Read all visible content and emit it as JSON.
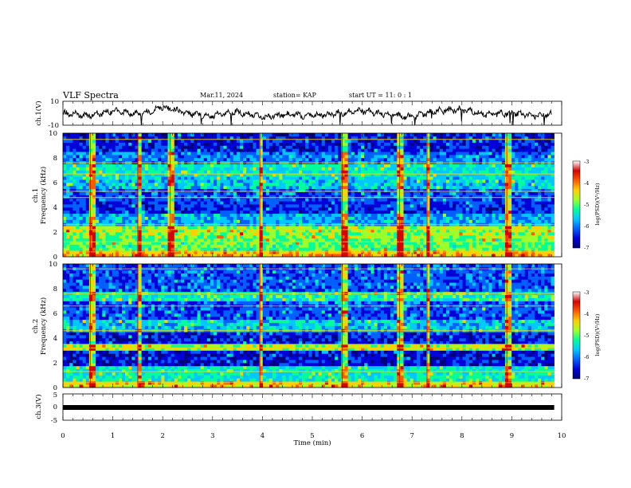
{
  "header": {
    "title": "VLF Spectra",
    "date": "Mar.11, 2024",
    "station": "station= KAP",
    "start_time": "start  UT  =   11: 0  : 1"
  },
  "colors": {
    "waveform": "#000000",
    "colormap": [
      "#00007a",
      "#0000d8",
      "#0060ff",
      "#00c8ff",
      "#00ff9a",
      "#9cff2a",
      "#ffd000",
      "#ff5a00",
      "#d80000",
      "#ffffff"
    ]
  },
  "chart_data": [
    {
      "type": "line",
      "panel": "ch1-waveform",
      "ylabel": "ch.1(V)",
      "ylim": [
        -10,
        10
      ],
      "ytick_labels": [
        "10",
        "-10"
      ],
      "xlim": [
        0,
        10
      ],
      "x": [
        0,
        0.5,
        1.0,
        1.5,
        2.0,
        2.5,
        3.0,
        3.5,
        4.0,
        4.5,
        5.0,
        5.5,
        6.0,
        6.5,
        7.0,
        7.5,
        8.0,
        8.5,
        9.0,
        9.5,
        9.8
      ],
      "y": [
        0,
        -2,
        2,
        -1,
        5,
        0,
        -2,
        1,
        -3,
        -1,
        -2,
        0,
        2,
        -1,
        -3,
        2,
        3,
        -1,
        0,
        -2,
        -1
      ]
    },
    {
      "type": "heatmap",
      "panel": "ch1-spectrogram",
      "ylabel": "Frequency (kHz)",
      "channel_label": "ch.1",
      "ylim": [
        0,
        10
      ],
      "ytick_labels": [
        "0",
        "2",
        "4",
        "6",
        "8",
        "10"
      ],
      "xlim": [
        0,
        9.85
      ],
      "colorbar": {
        "label": "log(PSD)(V²/Hz)",
        "range": [
          -7,
          -3
        ],
        "tick_labels": [
          "-3",
          "-4",
          "-5",
          "-6",
          "-7"
        ]
      },
      "band_levels": [
        {
          "f": [
            0,
            0.6
          ],
          "level": -4.0
        },
        {
          "f": [
            0.6,
            1.6
          ],
          "level": -4.8
        },
        {
          "f": [
            1.6,
            2.6
          ],
          "level": -4.6
        },
        {
          "f": [
            2.6,
            3.6
          ],
          "level": -5.6
        },
        {
          "f": [
            3.6,
            4.6
          ],
          "level": -6.2
        },
        {
          "f": [
            4.6,
            5.6
          ],
          "level": -6.0
        },
        {
          "f": [
            5.6,
            6.6
          ],
          "level": -5.4
        },
        {
          "f": [
            6.6,
            7.4
          ],
          "level": -5.2
        },
        {
          "f": [
            7.4,
            8.6
          ],
          "level": -5.8
        },
        {
          "f": [
            8.6,
            10
          ],
          "level": -6.3
        }
      ],
      "tone_lines_khz": [
        0.4,
        1.2,
        2.2,
        2.6,
        4.8,
        5.3,
        6.7,
        7.6,
        9.5
      ],
      "impulse_times_min": [
        0.55,
        1.5,
        2.15,
        3.95,
        5.6,
        6.75,
        7.3,
        8.9
      ]
    },
    {
      "type": "heatmap",
      "panel": "ch2-spectrogram",
      "ylabel": "Frequency (kHz)",
      "channel_label": "ch.2",
      "ylim": [
        0,
        10
      ],
      "ytick_labels": [
        "0",
        "2",
        "4",
        "6",
        "8",
        "10"
      ],
      "xlim": [
        0,
        9.85
      ],
      "colorbar": {
        "label": "log(PSD)(V²/Hz)",
        "range": [
          -7,
          -3
        ],
        "tick_labels": [
          "-3",
          "-4",
          "-5",
          "-6",
          "-7"
        ]
      },
      "band_levels": [
        {
          "f": [
            0,
            0.6
          ],
          "level": -4.2
        },
        {
          "f": [
            0.6,
            1.8
          ],
          "level": -5.2
        },
        {
          "f": [
            1.8,
            3.0
          ],
          "level": -6.4
        },
        {
          "f": [
            3.0,
            3.6
          ],
          "level": -4.6
        },
        {
          "f": [
            3.6,
            4.4
          ],
          "level": -6.3
        },
        {
          "f": [
            4.4,
            5.4
          ],
          "level": -5.4
        },
        {
          "f": [
            5.4,
            7.0
          ],
          "level": -6.0
        },
        {
          "f": [
            7.0,
            7.8
          ],
          "level": -5.1
        },
        {
          "f": [
            7.8,
            10
          ],
          "level": -6.0
        }
      ],
      "tone_lines_khz": [
        0.4,
        1.3,
        3.2,
        3.5,
        4.6,
        6.6,
        7.6,
        9.6
      ],
      "impulse_times_min": [
        0.55,
        1.5,
        3.95,
        5.6,
        6.75,
        7.3,
        8.9
      ]
    },
    {
      "type": "line",
      "panel": "ch3-waveform",
      "ylabel": "ch.3(V)",
      "ylim": [
        -5,
        5
      ],
      "ytick_labels": [
        "5",
        "0",
        "-5"
      ],
      "xlim": [
        0,
        10
      ],
      "xlabel": "Time  (min)",
      "xtick_labels": [
        "0",
        "1",
        "2",
        "3",
        "4",
        "5",
        "6",
        "7",
        "8",
        "9",
        "10"
      ],
      "x": [
        0,
        9.85
      ],
      "y": [
        0,
        0
      ]
    }
  ]
}
